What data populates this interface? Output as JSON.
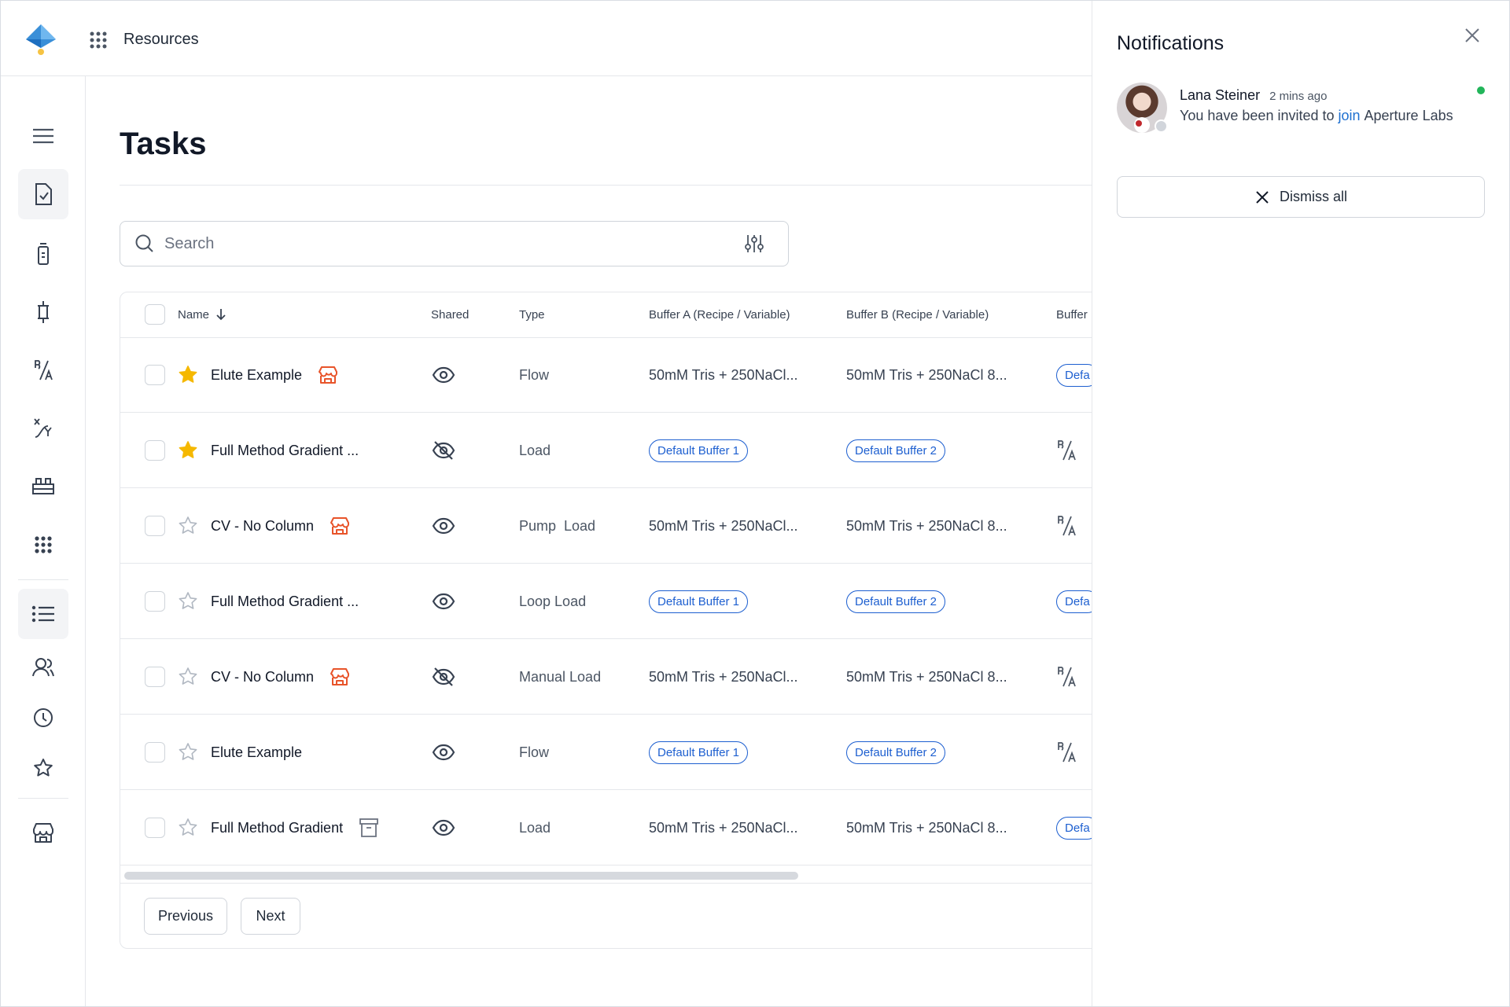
{
  "header": {
    "resources": "Resources"
  },
  "page": {
    "title": "Tasks",
    "search_placeholder": "Search"
  },
  "table": {
    "columns": [
      "Name",
      "Shared",
      "Type",
      "Buffer A (Recipe / Variable)",
      "Buffer B (Recipe / Variable)",
      "Buffer"
    ],
    "rows": [
      {
        "starred": true,
        "name": "Elute Example",
        "badge": "store",
        "shared": true,
        "type": "Flow",
        "buffer_a": {
          "text": "50mM Tris + 250NaCl..."
        },
        "buffer_b": {
          "text": "50mM Tris + 250NaCl 8..."
        },
        "buffer": {
          "pill": "Defa"
        }
      },
      {
        "starred": true,
        "name": "Full Method Gradient ...",
        "badge": null,
        "shared": false,
        "type": "Load",
        "buffer_a": {
          "pill": "Default Buffer 1"
        },
        "buffer_b": {
          "pill": "Default Buffer 2"
        },
        "buffer": {
          "icon": "ba"
        }
      },
      {
        "starred": false,
        "name": "CV -  No Column",
        "badge": "store",
        "shared": true,
        "type": "Pump  Load",
        "buffer_a": {
          "text": "50mM Tris + 250NaCl..."
        },
        "buffer_b": {
          "text": "50mM Tris + 250NaCl 8..."
        },
        "buffer": {
          "icon": "ba"
        }
      },
      {
        "starred": false,
        "name": "Full Method Gradient ...",
        "badge": null,
        "shared": true,
        "type": "Loop Load",
        "buffer_a": {
          "pill": "Default Buffer 1"
        },
        "buffer_b": {
          "pill": "Default Buffer 2"
        },
        "buffer": {
          "pill": "Defa"
        }
      },
      {
        "starred": false,
        "name": "CV -  No Column",
        "badge": "store",
        "shared": false,
        "type": "Manual Load",
        "buffer_a": {
          "text": "50mM Tris + 250NaCl..."
        },
        "buffer_b": {
          "text": "50mM Tris + 250NaCl 8..."
        },
        "buffer": {
          "icon": "ba"
        }
      },
      {
        "starred": false,
        "name": "Elute Example",
        "badge": null,
        "shared": true,
        "type": "Flow",
        "buffer_a": {
          "pill": "Default Buffer 1"
        },
        "buffer_b": {
          "pill": "Default Buffer 2"
        },
        "buffer": {
          "icon": "ba"
        }
      },
      {
        "starred": false,
        "name": "Full Method Gradient",
        "badge": "archive",
        "shared": true,
        "type": "Load",
        "buffer_a": {
          "text": "50mM Tris + 250NaCl..."
        },
        "buffer_b": {
          "text": "50mM Tris + 250NaCl 8..."
        },
        "buffer": {
          "pill": "Defa"
        }
      }
    ]
  },
  "pagination": {
    "previous": "Previous",
    "next": "Next"
  },
  "notifications": {
    "title": "Notifications",
    "items": [
      {
        "name": "Lana Steiner",
        "time": "2 mins ago",
        "message": [
          "You have been invited to",
          "join",
          "Aperture Labs"
        ]
      }
    ],
    "dismiss": "Dismiss all"
  }
}
